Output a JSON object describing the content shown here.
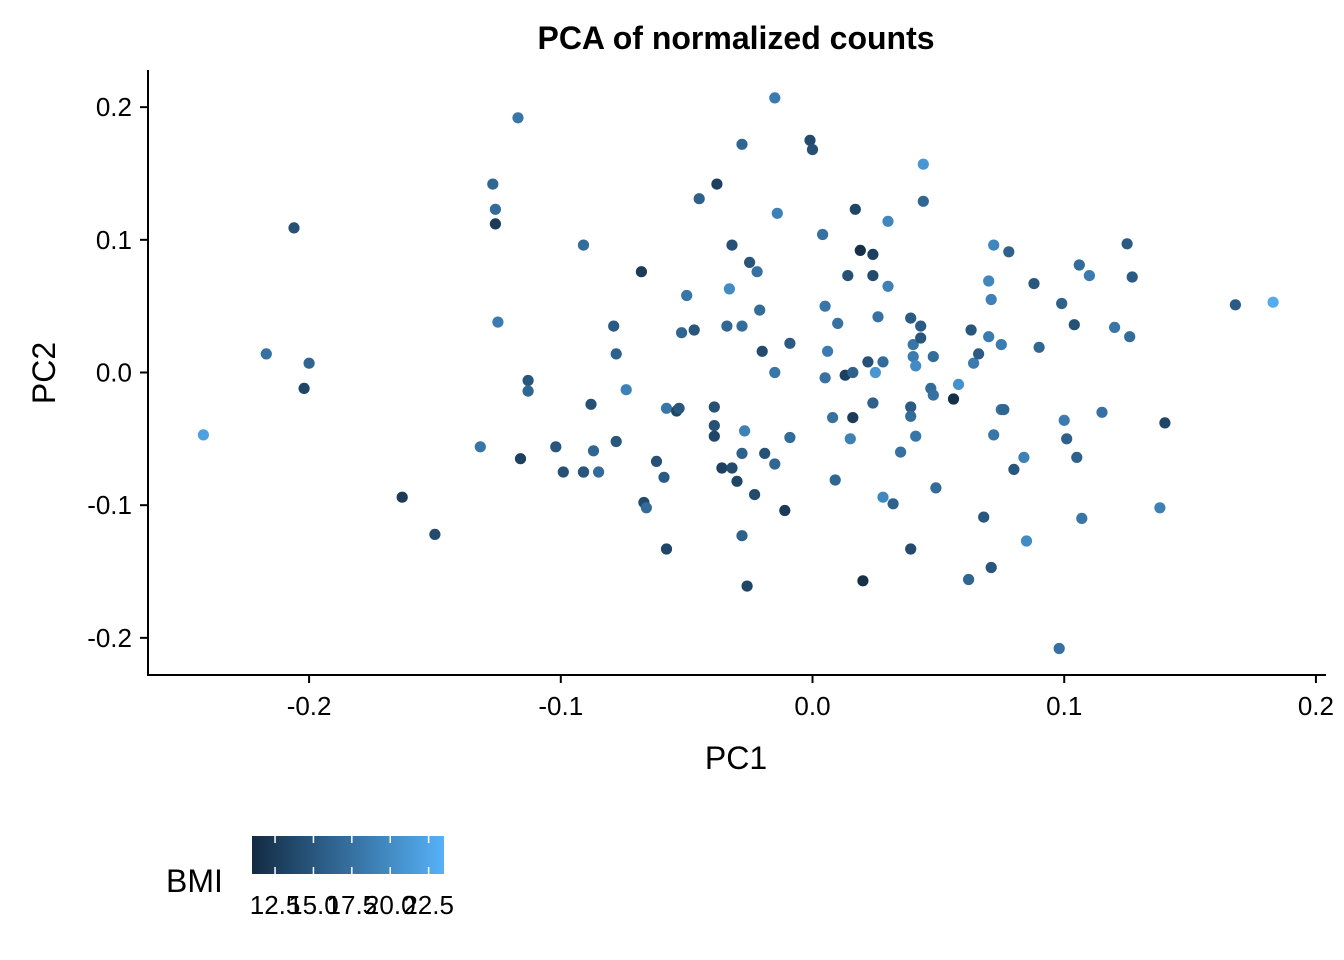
{
  "chart_data": {
    "type": "scatter",
    "title": "PCA of normalized counts",
    "xlabel": "PC1",
    "ylabel": "PC2",
    "xlim": [
      -0.264,
      0.204
    ],
    "ylim": [
      -0.228,
      0.228
    ],
    "x_ticks": [
      -0.2,
      -0.1,
      0.0,
      0.1,
      0.2
    ],
    "x_tick_labels": [
      "-0.2",
      "-0.1",
      "0.0",
      "0.1",
      "0.2"
    ],
    "y_ticks": [
      -0.2,
      -0.1,
      0.0,
      0.1,
      0.2
    ],
    "y_tick_labels": [
      "-0.2",
      "-0.1",
      "0.0",
      "0.1",
      "0.2"
    ],
    "grid": false,
    "color_scale": {
      "title": "BMI",
      "min": 11.0,
      "max": 23.5,
      "low_color": "#132b43",
      "high_color": "#56b1f7",
      "ticks": [
        12.5,
        15.0,
        17.5,
        20.0,
        22.5
      ],
      "tick_labels": [
        "12.5",
        "15.0",
        "17.5",
        "20.0",
        "22.5"
      ],
      "legend_position": "bottom-left"
    },
    "points": [
      {
        "x": -0.242,
        "y": -0.047,
        "bmi": 22.0
      },
      {
        "x": -0.217,
        "y": 0.014,
        "bmi": 17.5
      },
      {
        "x": -0.206,
        "y": 0.109,
        "bmi": 14.5
      },
      {
        "x": -0.2,
        "y": 0.007,
        "bmi": 16.5
      },
      {
        "x": -0.202,
        "y": -0.012,
        "bmi": 13.5
      },
      {
        "x": -0.163,
        "y": -0.094,
        "bmi": 12.5
      },
      {
        "x": -0.15,
        "y": -0.122,
        "bmi": 14.0
      },
      {
        "x": -0.132,
        "y": -0.056,
        "bmi": 18.0
      },
      {
        "x": -0.127,
        "y": 0.142,
        "bmi": 16.5
      },
      {
        "x": -0.126,
        "y": 0.123,
        "bmi": 17.0
      },
      {
        "x": -0.126,
        "y": 0.112,
        "bmi": 12.5
      },
      {
        "x": -0.125,
        "y": 0.038,
        "bmi": 18.5
      },
      {
        "x": -0.117,
        "y": 0.192,
        "bmi": 18.0
      },
      {
        "x": -0.116,
        "y": -0.065,
        "bmi": 13.0
      },
      {
        "x": -0.113,
        "y": -0.006,
        "bmi": 15.0
      },
      {
        "x": -0.113,
        "y": -0.014,
        "bmi": 16.5
      },
      {
        "x": -0.102,
        "y": -0.056,
        "bmi": 15.0
      },
      {
        "x": -0.099,
        "y": -0.075,
        "bmi": 14.5
      },
      {
        "x": -0.091,
        "y": 0.096,
        "bmi": 17.0
      },
      {
        "x": -0.091,
        "y": -0.075,
        "bmi": 15.5
      },
      {
        "x": -0.091,
        "y": -0.075,
        "bmi": 15.0
      },
      {
        "x": -0.088,
        "y": -0.024,
        "bmi": 14.5
      },
      {
        "x": -0.087,
        "y": -0.059,
        "bmi": 16.5
      },
      {
        "x": -0.085,
        "y": -0.075,
        "bmi": 17.0
      },
      {
        "x": -0.079,
        "y": 0.035,
        "bmi": 15.5
      },
      {
        "x": -0.078,
        "y": 0.014,
        "bmi": 16.0
      },
      {
        "x": -0.078,
        "y": -0.052,
        "bmi": 15.0
      },
      {
        "x": -0.074,
        "y": -0.013,
        "bmi": 19.0
      },
      {
        "x": -0.068,
        "y": 0.076,
        "bmi": 12.5
      },
      {
        "x": -0.067,
        "y": -0.098,
        "bmi": 14.0
      },
      {
        "x": -0.066,
        "y": -0.102,
        "bmi": 17.0
      },
      {
        "x": -0.062,
        "y": -0.067,
        "bmi": 14.5
      },
      {
        "x": -0.059,
        "y": -0.079,
        "bmi": 15.5
      },
      {
        "x": -0.058,
        "y": -0.027,
        "bmi": 18.0
      },
      {
        "x": -0.058,
        "y": -0.133,
        "bmi": 13.5
      },
      {
        "x": -0.054,
        "y": -0.029,
        "bmi": 13.5
      },
      {
        "x": -0.053,
        "y": -0.027,
        "bmi": 15.0
      },
      {
        "x": -0.052,
        "y": 0.03,
        "bmi": 16.5
      },
      {
        "x": -0.05,
        "y": 0.058,
        "bmi": 18.0
      },
      {
        "x": -0.047,
        "y": 0.032,
        "bmi": 15.0
      },
      {
        "x": -0.045,
        "y": 0.131,
        "bmi": 16.0
      },
      {
        "x": -0.039,
        "y": -0.026,
        "bmi": 14.5
      },
      {
        "x": -0.039,
        "y": -0.04,
        "bmi": 14.5
      },
      {
        "x": -0.039,
        "y": -0.048,
        "bmi": 13.5
      },
      {
        "x": -0.038,
        "y": 0.142,
        "bmi": 13.0
      },
      {
        "x": -0.036,
        "y": -0.072,
        "bmi": 13.0
      },
      {
        "x": -0.034,
        "y": 0.035,
        "bmi": 16.5
      },
      {
        "x": -0.033,
        "y": 0.063,
        "bmi": 20.0
      },
      {
        "x": -0.032,
        "y": 0.096,
        "bmi": 14.5
      },
      {
        "x": -0.032,
        "y": -0.072,
        "bmi": 14.0
      },
      {
        "x": -0.03,
        "y": -0.082,
        "bmi": 13.5
      },
      {
        "x": -0.028,
        "y": 0.172,
        "bmi": 16.5
      },
      {
        "x": -0.028,
        "y": 0.035,
        "bmi": 17.0
      },
      {
        "x": -0.028,
        "y": -0.061,
        "bmi": 16.0
      },
      {
        "x": -0.028,
        "y": -0.123,
        "bmi": 16.0
      },
      {
        "x": -0.027,
        "y": -0.044,
        "bmi": 19.0
      },
      {
        "x": -0.026,
        "y": -0.161,
        "bmi": 13.5
      },
      {
        "x": -0.025,
        "y": 0.083,
        "bmi": 15.0
      },
      {
        "x": -0.023,
        "y": -0.092,
        "bmi": 14.0
      },
      {
        "x": -0.022,
        "y": 0.076,
        "bmi": 17.5
      },
      {
        "x": -0.021,
        "y": 0.047,
        "bmi": 17.0
      },
      {
        "x": -0.02,
        "y": 0.016,
        "bmi": 14.0
      },
      {
        "x": -0.019,
        "y": -0.061,
        "bmi": 14.5
      },
      {
        "x": -0.015,
        "y": 0.207,
        "bmi": 18.5
      },
      {
        "x": -0.015,
        "y": 0.0,
        "bmi": 18.0
      },
      {
        "x": -0.015,
        "y": -0.069,
        "bmi": 16.5
      },
      {
        "x": -0.014,
        "y": 0.12,
        "bmi": 19.0
      },
      {
        "x": -0.011,
        "y": -0.104,
        "bmi": 12.5
      },
      {
        "x": -0.009,
        "y": 0.022,
        "bmi": 15.5
      },
      {
        "x": -0.009,
        "y": -0.049,
        "bmi": 17.0
      },
      {
        "x": -0.001,
        "y": 0.175,
        "bmi": 14.0
      },
      {
        "x": -0.0,
        "y": 0.168,
        "bmi": 14.5
      },
      {
        "x": 0.004,
        "y": 0.104,
        "bmi": 17.5
      },
      {
        "x": 0.005,
        "y": 0.05,
        "bmi": 18.0
      },
      {
        "x": 0.005,
        "y": -0.004,
        "bmi": 17.5
      },
      {
        "x": 0.006,
        "y": 0.016,
        "bmi": 18.5
      },
      {
        "x": 0.008,
        "y": -0.034,
        "bmi": 17.5
      },
      {
        "x": 0.009,
        "y": -0.081,
        "bmi": 16.5
      },
      {
        "x": 0.01,
        "y": 0.037,
        "bmi": 17.5
      },
      {
        "x": 0.013,
        "y": -0.002,
        "bmi": 13.0
      },
      {
        "x": 0.014,
        "y": 0.073,
        "bmi": 14.5
      },
      {
        "x": 0.015,
        "y": -0.05,
        "bmi": 19.0
      },
      {
        "x": 0.016,
        "y": -0.034,
        "bmi": 12.5
      },
      {
        "x": 0.016,
        "y": 0.0,
        "bmi": 16.0
      },
      {
        "x": 0.017,
        "y": 0.123,
        "bmi": 13.5
      },
      {
        "x": 0.019,
        "y": 0.092,
        "bmi": 11.5
      },
      {
        "x": 0.02,
        "y": -0.157,
        "bmi": 11.5
      },
      {
        "x": 0.022,
        "y": 0.008,
        "bmi": 14.5
      },
      {
        "x": 0.024,
        "y": 0.089,
        "bmi": 13.0
      },
      {
        "x": 0.024,
        "y": 0.073,
        "bmi": 14.0
      },
      {
        "x": 0.024,
        "y": -0.023,
        "bmi": 16.0
      },
      {
        "x": 0.025,
        "y": 0.0,
        "bmi": 21.0
      },
      {
        "x": 0.026,
        "y": 0.042,
        "bmi": 17.5
      },
      {
        "x": 0.028,
        "y": 0.008,
        "bmi": 17.0
      },
      {
        "x": 0.028,
        "y": -0.094,
        "bmi": 19.5
      },
      {
        "x": 0.03,
        "y": 0.114,
        "bmi": 19.5
      },
      {
        "x": 0.03,
        "y": 0.065,
        "bmi": 19.0
      },
      {
        "x": 0.032,
        "y": -0.099,
        "bmi": 16.0
      },
      {
        "x": 0.035,
        "y": -0.06,
        "bmi": 17.5
      },
      {
        "x": 0.039,
        "y": 0.041,
        "bmi": 15.5
      },
      {
        "x": 0.039,
        "y": -0.026,
        "bmi": 15.5
      },
      {
        "x": 0.039,
        "y": -0.033,
        "bmi": 17.0
      },
      {
        "x": 0.039,
        "y": -0.133,
        "bmi": 14.0
      },
      {
        "x": 0.04,
        "y": 0.021,
        "bmi": 18.0
      },
      {
        "x": 0.04,
        "y": 0.012,
        "bmi": 18.5
      },
      {
        "x": 0.041,
        "y": -0.048,
        "bmi": 18.0
      },
      {
        "x": 0.041,
        "y": 0.005,
        "bmi": 20.0
      },
      {
        "x": 0.043,
        "y": 0.026,
        "bmi": 15.0
      },
      {
        "x": 0.043,
        "y": 0.035,
        "bmi": 15.5
      },
      {
        "x": 0.044,
        "y": 0.157,
        "bmi": 21.0
      },
      {
        "x": 0.044,
        "y": 0.129,
        "bmi": 16.5
      },
      {
        "x": 0.047,
        "y": -0.012,
        "bmi": 17.0
      },
      {
        "x": 0.048,
        "y": 0.012,
        "bmi": 17.0
      },
      {
        "x": 0.048,
        "y": -0.017,
        "bmi": 17.5
      },
      {
        "x": 0.049,
        "y": -0.087,
        "bmi": 17.0
      },
      {
        "x": 0.056,
        "y": -0.02,
        "bmi": 11.5
      },
      {
        "x": 0.058,
        "y": -0.009,
        "bmi": 20.5
      },
      {
        "x": 0.062,
        "y": -0.156,
        "bmi": 16.5
      },
      {
        "x": 0.063,
        "y": 0.032,
        "bmi": 15.0
      },
      {
        "x": 0.064,
        "y": 0.007,
        "bmi": 18.5
      },
      {
        "x": 0.066,
        "y": 0.014,
        "bmi": 15.5
      },
      {
        "x": 0.068,
        "y": -0.109,
        "bmi": 15.0
      },
      {
        "x": 0.07,
        "y": 0.069,
        "bmi": 19.5
      },
      {
        "x": 0.07,
        "y": 0.027,
        "bmi": 18.5
      },
      {
        "x": 0.071,
        "y": 0.055,
        "bmi": 19.0
      },
      {
        "x": 0.071,
        "y": -0.147,
        "bmi": 15.0
      },
      {
        "x": 0.072,
        "y": -0.047,
        "bmi": 18.0
      },
      {
        "x": 0.072,
        "y": 0.096,
        "bmi": 19.5
      },
      {
        "x": 0.075,
        "y": 0.021,
        "bmi": 18.5
      },
      {
        "x": 0.075,
        "y": -0.028,
        "bmi": 17.5
      },
      {
        "x": 0.076,
        "y": -0.028,
        "bmi": 16.5
      },
      {
        "x": 0.078,
        "y": 0.091,
        "bmi": 16.0
      },
      {
        "x": 0.08,
        "y": -0.073,
        "bmi": 15.0
      },
      {
        "x": 0.084,
        "y": -0.064,
        "bmi": 19.0
      },
      {
        "x": 0.085,
        "y": -0.127,
        "bmi": 20.0
      },
      {
        "x": 0.088,
        "y": 0.067,
        "bmi": 15.0
      },
      {
        "x": 0.09,
        "y": 0.019,
        "bmi": 16.5
      },
      {
        "x": 0.098,
        "y": -0.208,
        "bmi": 17.5
      },
      {
        "x": 0.099,
        "y": 0.052,
        "bmi": 16.0
      },
      {
        "x": 0.1,
        "y": -0.036,
        "bmi": 18.5
      },
      {
        "x": 0.101,
        "y": -0.05,
        "bmi": 16.0
      },
      {
        "x": 0.104,
        "y": 0.036,
        "bmi": 14.5
      },
      {
        "x": 0.105,
        "y": -0.064,
        "bmi": 16.0
      },
      {
        "x": 0.106,
        "y": 0.081,
        "bmi": 17.0
      },
      {
        "x": 0.107,
        "y": -0.11,
        "bmi": 18.0
      },
      {
        "x": 0.11,
        "y": 0.073,
        "bmi": 18.5
      },
      {
        "x": 0.115,
        "y": -0.03,
        "bmi": 17.5
      },
      {
        "x": 0.12,
        "y": 0.034,
        "bmi": 18.0
      },
      {
        "x": 0.125,
        "y": 0.097,
        "bmi": 15.5
      },
      {
        "x": 0.126,
        "y": 0.027,
        "bmi": 17.0
      },
      {
        "x": 0.127,
        "y": 0.072,
        "bmi": 15.5
      },
      {
        "x": 0.138,
        "y": -0.102,
        "bmi": 19.0
      },
      {
        "x": 0.14,
        "y": -0.038,
        "bmi": 13.5
      },
      {
        "x": 0.168,
        "y": 0.051,
        "bmi": 15.5
      },
      {
        "x": 0.183,
        "y": 0.053,
        "bmi": 23.0
      }
    ]
  }
}
